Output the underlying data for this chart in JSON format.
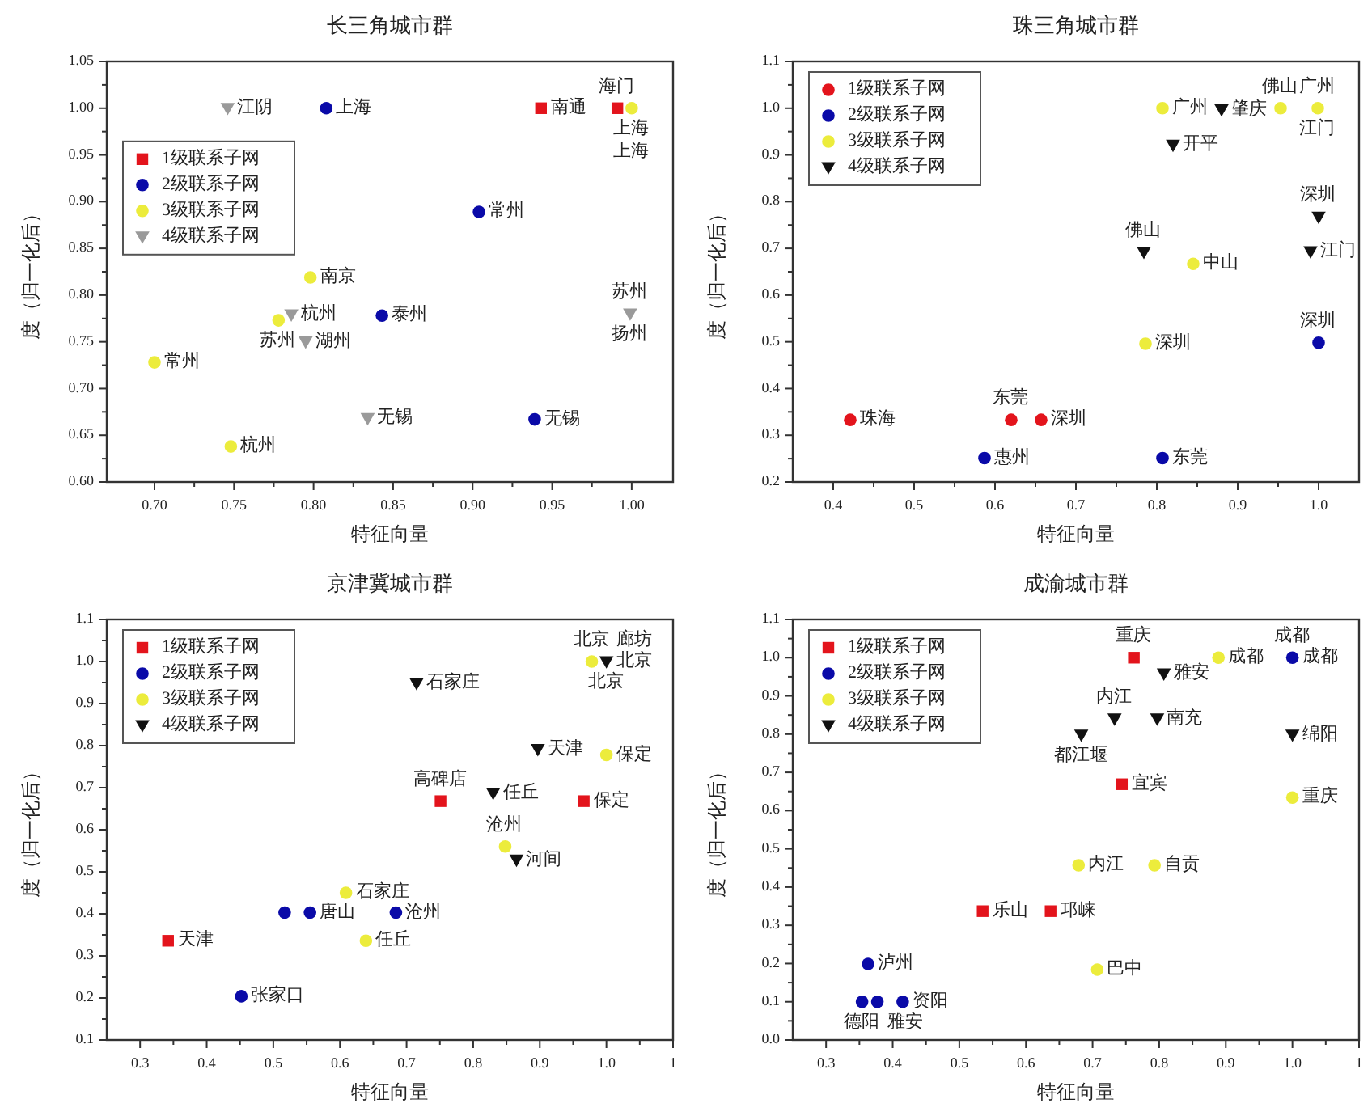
{
  "chart_data": [
    {
      "type": "scatter",
      "title": "长三角城市群",
      "xlabel": "特征向量",
      "ylabel": "度（归一化后）",
      "xlim": [
        0.67,
        1.026
      ],
      "ylim": [
        0.6,
        1.05
      ],
      "xticks": [
        {
          "value": 0.7,
          "label": "0.70"
        },
        {
          "value": 0.75,
          "label": "0.75"
        },
        {
          "value": 0.8,
          "label": "0.80"
        },
        {
          "value": 0.85,
          "label": "0.85"
        },
        {
          "value": 0.9,
          "label": "0.90"
        },
        {
          "value": 0.95,
          "label": "0.95"
        },
        {
          "value": 1.0,
          "label": "1.00"
        }
      ],
      "yticks": [
        {
          "value": 0.6,
          "label": "0.60"
        },
        {
          "value": 0.65,
          "label": "0.65"
        },
        {
          "value": 0.7,
          "label": "0.70"
        },
        {
          "value": 0.75,
          "label": "0.75"
        },
        {
          "value": 0.8,
          "label": "0.80"
        },
        {
          "value": 0.85,
          "label": "0.85"
        },
        {
          "value": 0.9,
          "label": "0.90"
        },
        {
          "value": 0.95,
          "label": "0.95"
        },
        {
          "value": 1.0,
          "label": "1.00"
        },
        {
          "value": 1.05,
          "label": "1.05"
        }
      ],
      "legend": "left",
      "series": [
        {
          "name": "1级联系子网",
          "color": "#e3141c",
          "marker": "square",
          "x": [
            0.943,
            0.991
          ],
          "values": [
            1.0,
            1.0
          ]
        },
        {
          "name": "2级联系子网",
          "color": "#0a0aa8",
          "marker": "circle",
          "x": [
            0.808,
            0.904,
            0.843,
            0.939
          ],
          "values": [
            1.0,
            0.889,
            0.778,
            0.667
          ]
        },
        {
          "name": "3级联系子网",
          "color": "#ecec3c",
          "marker": "circle",
          "x": [
            0.798,
            0.778,
            0.7,
            0.748,
            1.0
          ],
          "values": [
            0.819,
            0.773,
            0.728,
            0.638,
            1.0
          ]
        },
        {
          "name": "4级联系子网",
          "color": "#9a9a9a",
          "marker": "triangle",
          "x": [
            0.746,
            0.786,
            0.795,
            0.834,
            0.999
          ],
          "values": [
            1.0,
            0.779,
            0.75,
            0.668,
            0.78
          ]
        }
      ],
      "annotations": [
        {
          "text": "上海",
          "x": 0.808,
          "y": 1.0
        },
        {
          "text": "江阴",
          "x": 0.746,
          "y": 1.0
        },
        {
          "text": "南通",
          "x": 0.943,
          "y": 1.0
        },
        {
          "text": "海门",
          "x": 0.991,
          "y": 1.0
        },
        {
          "text": "上海",
          "x": 1.0,
          "y": 1.0
        },
        {
          "text": "上海",
          "x": 1.0,
          "y": 1.0
        },
        {
          "text": "常州",
          "x": 0.904,
          "y": 0.889
        },
        {
          "text": "南京",
          "x": 0.798,
          "y": 0.819
        },
        {
          "text": "杭州",
          "x": 0.786,
          "y": 0.779
        },
        {
          "text": "苏州",
          "x": 0.778,
          "y": 0.773
        },
        {
          "text": "湖州",
          "x": 0.795,
          "y": 0.75
        },
        {
          "text": "泰州",
          "x": 0.843,
          "y": 0.778
        },
        {
          "text": "苏州",
          "x": 0.999,
          "y": 0.78
        },
        {
          "text": "扬州",
          "x": 0.999,
          "y": 0.78
        },
        {
          "text": "常州",
          "x": 0.7,
          "y": 0.728
        },
        {
          "text": "无锡",
          "x": 0.834,
          "y": 0.668
        },
        {
          "text": "无锡",
          "x": 0.939,
          "y": 0.667
        },
        {
          "text": "杭州",
          "x": 0.748,
          "y": 0.638
        }
      ]
    },
    {
      "type": "scatter",
      "title": "珠三角城市群",
      "xlabel": "特征向量",
      "ylabel": "度（归一化后）",
      "xlim": [
        0.35,
        1.05
      ],
      "ylim": [
        0.2,
        1.1
      ],
      "xticks": [
        0.4,
        0.5,
        0.6,
        0.7,
        0.8,
        0.9,
        {
          "value": 1.0,
          "label": "1.0"
        }
      ],
      "yticks": [
        0.2,
        0.3,
        0.4,
        0.5,
        0.6,
        0.7,
        0.8,
        0.9,
        {
          "value": 1.0,
          "label": "1.0"
        },
        1.1
      ],
      "legend": "top left",
      "series": [
        {
          "name": "1级联系子网",
          "color": "#e3141c",
          "marker": "circle",
          "x": [
            0.421,
            0.62,
            0.657
          ],
          "values": [
            0.333,
            0.333,
            0.333
          ]
        },
        {
          "name": "2级联系子网",
          "color": "#0a0aa8",
          "marker": "circle",
          "x": [
            0.587,
            0.807,
            1.0
          ],
          "values": [
            0.251,
            0.251,
            0.498
          ]
        },
        {
          "name": "3级联系子网",
          "color": "#ecec3c",
          "marker": "circle",
          "x": [
            0.807,
            0.953,
            0.999,
            0.845,
            0.786
          ],
          "values": [
            1.0,
            1.0,
            1.0,
            0.667,
            0.496
          ]
        },
        {
          "name": "4级联系子网",
          "color": "#111111",
          "marker": "triangle",
          "x": [
            0.88,
            0.82,
            0.784,
            1.0,
            0.99
          ],
          "values": [
            0.997,
            0.921,
            0.692,
            0.767,
            0.693
          ]
        }
      ],
      "annotations": [
        {
          "text": "广州",
          "x": 0.807,
          "y": 1.0
        },
        {
          "text": "肇庆",
          "x": 0.88,
          "y": 0.997
        },
        {
          "text": "广州",
          "x": 0.999,
          "y": 1.0
        },
        {
          "text": "佛山",
          "x": 0.953,
          "y": 1.0
        },
        {
          "text": "江门",
          "x": 0.999,
          "y": 1.0
        },
        {
          "text": "开平",
          "x": 0.82,
          "y": 0.921
        },
        {
          "text": "深圳",
          "x": 1.0,
          "y": 0.767
        },
        {
          "text": "佛山",
          "x": 0.784,
          "y": 0.692
        },
        {
          "text": "江门",
          "x": 0.99,
          "y": 0.693
        },
        {
          "text": "中山",
          "x": 0.845,
          "y": 0.667
        },
        {
          "text": "深圳",
          "x": 0.786,
          "y": 0.496
        },
        {
          "text": "深圳",
          "x": 1.0,
          "y": 0.498
        },
        {
          "text": "珠海",
          "x": 0.421,
          "y": 0.333
        },
        {
          "text": "东莞",
          "x": 0.62,
          "y": 0.333
        },
        {
          "text": "深圳",
          "x": 0.657,
          "y": 0.333
        },
        {
          "text": "惠州",
          "x": 0.587,
          "y": 0.251
        },
        {
          "text": "东莞",
          "x": 0.807,
          "y": 0.251
        }
      ]
    },
    {
      "type": "scatter",
      "title": "京津冀城市群",
      "xlabel": "特征向量",
      "ylabel": "度（归一化后）",
      "xlim": [
        0.25,
        1.1
      ],
      "ylim": [
        0.1,
        1.1
      ],
      "xticks": [
        0.3,
        0.4,
        0.5,
        0.6,
        0.7,
        0.8,
        0.9,
        {
          "value": 1.0,
          "label": "1.0"
        },
        {
          "value": 1.1,
          "label": "1"
        }
      ],
      "yticks": [
        0.1,
        0.2,
        0.3,
        0.4,
        0.5,
        0.6,
        0.7,
        0.8,
        0.9,
        {
          "value": 1.0,
          "label": "1.0"
        },
        1.1
      ],
      "legend": "top left",
      "series": [
        {
          "name": "1级联系子网",
          "color": "#e3141c",
          "marker": "square",
          "x": [
            0.342,
            0.751,
            0.966
          ],
          "values": [
            0.336,
            0.668,
            0.668
          ]
        },
        {
          "name": "2级联系子网",
          "color": "#0a0aa8",
          "marker": "circle",
          "x": [
            0.452,
            0.517,
            0.555,
            0.684
          ],
          "values": [
            0.204,
            0.403,
            0.403,
            0.403
          ]
        },
        {
          "name": "3级联系子网",
          "color": "#ecec3c",
          "marker": "circle",
          "x": [
            0.978,
            1.0,
            0.848,
            0.609,
            0.639
          ],
          "values": [
            1.0,
            0.778,
            0.56,
            0.45,
            0.336
          ]
        },
        {
          "name": "4级联系子网",
          "color": "#111111",
          "marker": "triangle",
          "x": [
            1.0,
            0.715,
            0.897,
            0.83,
            0.865
          ],
          "values": [
            1.0,
            0.948,
            0.791,
            0.687,
            0.528
          ]
        }
      ],
      "annotations": [
        {
          "text": "北京",
          "x": 1.0,
          "y": 1.0
        },
        {
          "text": "北京",
          "x": 0.978,
          "y": 1.0
        },
        {
          "text": "北京",
          "x": 1.0,
          "y": 1.0
        },
        {
          "text": "廊坊",
          "x": 1.0,
          "y": 1.0
        },
        {
          "text": "石家庄",
          "x": 0.715,
          "y": 0.948
        },
        {
          "text": "天津",
          "x": 0.897,
          "y": 0.791
        },
        {
          "text": "保定",
          "x": 1.0,
          "y": 0.778
        },
        {
          "text": "任丘",
          "x": 0.83,
          "y": 0.687
        },
        {
          "text": "高碑店",
          "x": 0.751,
          "y": 0.668
        },
        {
          "text": "保定",
          "x": 0.966,
          "y": 0.668
        },
        {
          "text": "沧州",
          "x": 0.848,
          "y": 0.56
        },
        {
          "text": "河间",
          "x": 0.865,
          "y": 0.528
        },
        {
          "text": "石家庄",
          "x": 0.609,
          "y": 0.45
        },
        {
          "text": "唐山",
          "x": 0.555,
          "y": 0.403
        },
        {
          "text": "沧州",
          "x": 0.684,
          "y": 0.403
        },
        {
          "text": "任丘",
          "x": 0.639,
          "y": 0.336
        },
        {
          "text": "天津",
          "x": 0.342,
          "y": 0.336
        },
        {
          "text": "张家口",
          "x": 0.452,
          "y": 0.204
        }
      ]
    },
    {
      "type": "scatter",
      "title": "成渝城市群",
      "xlabel": "特征向量",
      "ylabel": "度（归一化后）",
      "xlim": [
        0.25,
        1.1
      ],
      "ylim": [
        0.0,
        1.1
      ],
      "xticks": [
        0.3,
        0.4,
        0.5,
        0.6,
        0.7,
        0.8,
        0.9,
        {
          "value": 1.0,
          "label": "1.0"
        },
        {
          "value": 1.1,
          "label": "1"
        }
      ],
      "yticks": [
        {
          "value": 0.0,
          "label": "0.0"
        },
        0.1,
        0.2,
        0.3,
        0.4,
        0.5,
        0.6,
        0.7,
        0.8,
        0.9,
        {
          "value": 1.0,
          "label": "1.0"
        },
        1.1
      ],
      "legend": "top left",
      "series": [
        {
          "name": "1级联系子网",
          "color": "#e3141c",
          "marker": "square",
          "x": [
            0.762,
            0.744,
            0.535,
            0.637
          ],
          "values": [
            1.0,
            0.669,
            0.337,
            0.337
          ]
        },
        {
          "name": "2级联系子网",
          "color": "#0a0aa8",
          "marker": "circle",
          "x": [
            1.0,
            0.363,
            0.354,
            0.377,
            0.415
          ],
          "values": [
            1.0,
            0.199,
            0.1,
            0.1,
            0.1
          ]
        },
        {
          "name": "3级联系子网",
          "color": "#ecec3c",
          "marker": "circle",
          "x": [
            0.889,
            1.0,
            0.679,
            0.793,
            0.707
          ],
          "values": [
            1.0,
            0.634,
            0.457,
            0.457,
            0.184
          ]
        },
        {
          "name": "4级联系子网",
          "color": "#111111",
          "marker": "triangle",
          "x": [
            0.807,
            0.733,
            0.797,
            1.0,
            0.683
          ],
          "values": [
            0.958,
            0.84,
            0.84,
            0.798,
            0.798
          ]
        }
      ],
      "annotations": [
        {
          "text": "重庆",
          "x": 0.762,
          "y": 1.0
        },
        {
          "text": "成都",
          "x": 0.889,
          "y": 1.0
        },
        {
          "text": "成都",
          "x": 1.0,
          "y": 1.0
        },
        {
          "text": "成都",
          "x": 1.0,
          "y": 1.0
        },
        {
          "text": "雅安",
          "x": 0.807,
          "y": 0.958
        },
        {
          "text": "内江",
          "x": 0.733,
          "y": 0.84
        },
        {
          "text": "南充",
          "x": 0.797,
          "y": 0.84
        },
        {
          "text": "绵阳",
          "x": 1.0,
          "y": 0.798
        },
        {
          "text": "都江堰",
          "x": 0.683,
          "y": 0.798
        },
        {
          "text": "宜宾",
          "x": 0.744,
          "y": 0.669
        },
        {
          "text": "重庆",
          "x": 1.0,
          "y": 0.634
        },
        {
          "text": "内江",
          "x": 0.679,
          "y": 0.457
        },
        {
          "text": "自贡",
          "x": 0.793,
          "y": 0.457
        },
        {
          "text": "乐山",
          "x": 0.535,
          "y": 0.337
        },
        {
          "text": "邛崃",
          "x": 0.637,
          "y": 0.337
        },
        {
          "text": "巴中",
          "x": 0.707,
          "y": 0.184
        },
        {
          "text": "泸州",
          "x": 0.363,
          "y": 0.199
        },
        {
          "text": "德阳",
          "x": 0.354,
          "y": 0.1
        },
        {
          "text": "雅安",
          "x": 0.377,
          "y": 0.1
        },
        {
          "text": "资阳",
          "x": 0.415,
          "y": 0.1
        }
      ]
    }
  ]
}
